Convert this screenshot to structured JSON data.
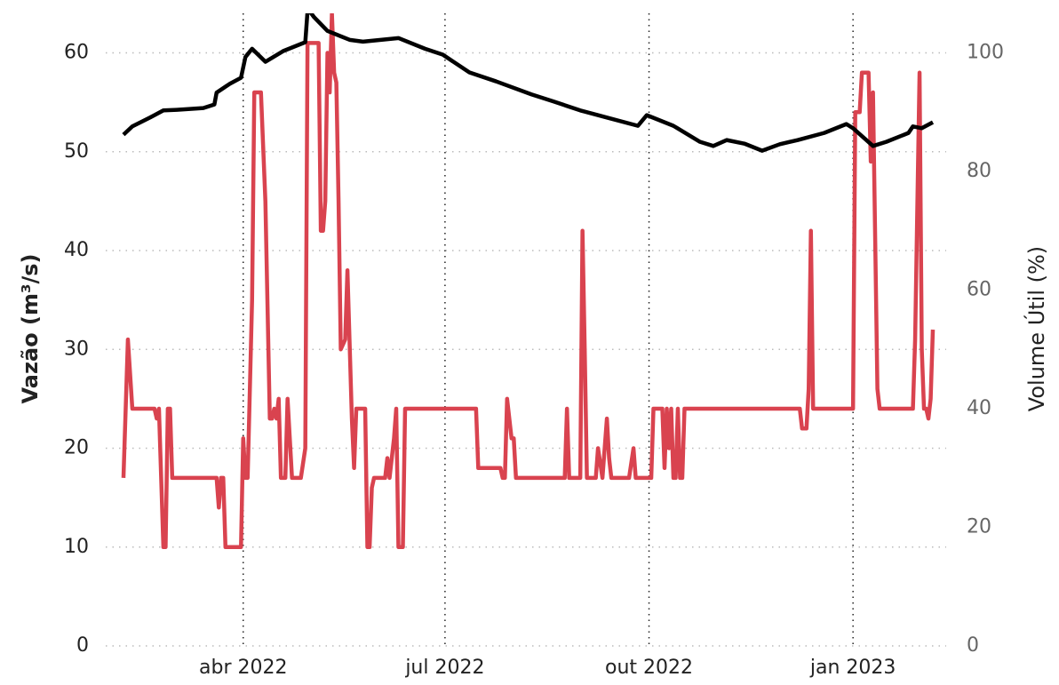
{
  "chart_data": {
    "type": "line",
    "y_label": "Vazão (m³/s)",
    "y2_label": "Volume Útil (%)",
    "xlim": [
      "2022-01-29",
      "2023-02-12"
    ],
    "xticks": [
      {
        "value": "2022-04-01",
        "label": "abr 2022"
      },
      {
        "value": "2022-07-01",
        "label": "jul 2022"
      },
      {
        "value": "2022-10-01",
        "label": "out 2022"
      },
      {
        "value": "2023-01-01",
        "label": "jan 2023"
      }
    ],
    "ylim": [
      0,
      64
    ],
    "yticks": [
      0,
      10,
      20,
      30,
      40,
      50,
      60
    ],
    "y2lim": [
      0,
      106.67
    ],
    "y2ticks": [
      0,
      20,
      40,
      60,
      80,
      100
    ],
    "grid": true,
    "series": [
      {
        "color": "#d9434f",
        "axis": "y",
        "x": [
          "2022-02-06",
          "2022-02-08",
          "2022-02-10",
          "2022-02-20",
          "2022-02-21",
          "2022-02-22",
          "2022-02-24",
          "2022-02-25",
          "2022-02-26",
          "2022-02-27",
          "2022-02-28",
          "2022-03-20",
          "2022-03-21",
          "2022-03-22",
          "2022-03-23",
          "2022-03-24",
          "2022-03-31",
          "2022-04-01",
          "2022-04-02",
          "2022-04-03",
          "2022-04-05",
          "2022-04-06",
          "2022-04-09",
          "2022-04-11",
          "2022-04-13",
          "2022-04-14",
          "2022-04-15",
          "2022-04-16",
          "2022-04-17",
          "2022-04-18",
          "2022-04-20",
          "2022-04-21",
          "2022-04-23",
          "2022-04-27",
          "2022-04-29",
          "2022-04-30",
          "2022-05-05",
          "2022-05-06",
          "2022-05-07",
          "2022-05-08",
          "2022-05-09",
          "2022-05-10",
          "2022-05-11",
          "2022-05-12",
          "2022-05-13",
          "2022-05-14",
          "2022-05-15",
          "2022-05-17",
          "2022-05-18",
          "2022-05-20",
          "2022-05-21",
          "2022-05-22",
          "2022-05-26",
          "2022-05-27",
          "2022-05-28",
          "2022-05-29",
          "2022-05-30",
          "2022-06-04",
          "2022-06-05",
          "2022-06-06",
          "2022-06-08",
          "2022-06-09",
          "2022-06-10",
          "2022-06-12",
          "2022-06-13",
          "2022-07-15",
          "2022-07-16",
          "2022-07-26",
          "2022-07-27",
          "2022-07-28",
          "2022-07-29",
          "2022-07-31",
          "2022-08-01",
          "2022-08-02",
          "2022-08-24",
          "2022-08-25",
          "2022-08-26",
          "2022-08-31",
          "2022-09-01",
          "2022-09-02",
          "2022-09-03",
          "2022-09-07",
          "2022-09-08",
          "2022-09-10",
          "2022-09-11",
          "2022-09-12",
          "2022-09-13",
          "2022-09-14",
          "2022-09-22",
          "2022-09-24",
          "2022-09-25",
          "2022-10-02",
          "2022-10-03",
          "2022-10-07",
          "2022-10-08",
          "2022-10-09",
          "2022-10-10",
          "2022-10-11",
          "2022-10-12",
          "2022-10-13",
          "2022-10-14",
          "2022-10-15",
          "2022-10-16",
          "2022-10-17",
          "2022-12-08",
          "2022-12-09",
          "2022-12-11",
          "2022-12-12",
          "2022-12-13",
          "2022-12-14",
          "2023-01-01",
          "2023-01-02",
          "2023-01-04",
          "2023-01-05",
          "2023-01-08",
          "2023-01-09",
          "2023-01-10",
          "2023-01-12",
          "2023-01-13",
          "2023-01-28",
          "2023-01-29",
          "2023-01-31",
          "2023-02-01",
          "2023-02-02",
          "2023-02-03",
          "2023-02-04",
          "2023-02-05",
          "2023-02-06"
        ],
        "values": [
          17,
          31,
          24,
          24,
          23,
          24,
          10,
          10,
          24,
          24,
          17,
          17,
          14,
          17,
          17,
          10,
          10,
          21,
          17,
          17,
          35,
          56,
          56,
          45,
          23,
          23,
          24,
          23,
          25,
          17,
          17,
          25,
          17,
          17,
          20,
          61,
          61,
          42,
          42,
          45,
          60,
          56,
          64,
          58,
          57,
          45,
          30,
          31,
          38,
          23,
          18,
          24,
          24,
          10,
          10,
          16,
          17,
          17,
          19,
          17,
          21,
          24,
          10,
          10,
          24,
          24,
          18,
          18,
          17,
          17,
          25,
          21,
          21,
          17,
          17,
          24,
          17,
          17,
          42,
          30,
          17,
          17,
          20,
          17,
          20,
          23,
          19,
          17,
          17,
          20,
          17,
          17,
          24,
          24,
          18,
          24,
          20,
          24,
          17,
          17,
          24,
          17,
          17,
          24,
          24,
          22,
          22,
          26,
          42,
          24,
          24,
          54,
          54,
          58,
          58,
          49,
          56,
          26,
          24,
          24,
          31,
          58,
          30,
          24,
          24,
          23,
          25,
          32
        ]
      },
      {
        "color": "#000000",
        "axis": "y2",
        "x": [
          "2022-02-06",
          "2022-02-10",
          "2022-02-18",
          "2022-02-24",
          "2022-03-02",
          "2022-03-14",
          "2022-03-19",
          "2022-03-20",
          "2022-03-26",
          "2022-03-31",
          "2022-04-02",
          "2022-04-05",
          "2022-04-11",
          "2022-04-19",
          "2022-04-29",
          "2022-04-30",
          "2022-05-01",
          "2022-05-03",
          "2022-05-09",
          "2022-05-19",
          "2022-05-25",
          "2022-06-10",
          "2022-06-22",
          "2022-06-30",
          "2022-07-12",
          "2022-07-24",
          "2022-08-09",
          "2022-08-19",
          "2022-08-31",
          "2022-09-12",
          "2022-09-26",
          "2022-09-30",
          "2022-10-12",
          "2022-10-24",
          "2022-10-30",
          "2022-11-05",
          "2022-11-13",
          "2022-11-21",
          "2022-11-29",
          "2022-12-07",
          "2022-12-19",
          "2022-12-29",
          "2023-01-01",
          "2023-01-10",
          "2023-01-16",
          "2023-01-26",
          "2023-01-28",
          "2023-02-01",
          "2023-02-06"
        ],
        "values": [
          86.2,
          87.6,
          89.1,
          90.3,
          90.4,
          90.7,
          91.3,
          93.3,
          94.8,
          95.8,
          99.3,
          100.7,
          98.5,
          100.3,
          101.8,
          107,
          107,
          106,
          103.7,
          102.2,
          101.9,
          102.5,
          100.7,
          99.7,
          96.7,
          95.2,
          93,
          91.8,
          90.3,
          89.1,
          87.7,
          89.5,
          87.7,
          85,
          84.3,
          85.3,
          84.7,
          83.5,
          84.6,
          85.3,
          86.5,
          88,
          87.3,
          84.3,
          85,
          86.5,
          87.6,
          87.3,
          88.3
        ]
      }
    ]
  }
}
